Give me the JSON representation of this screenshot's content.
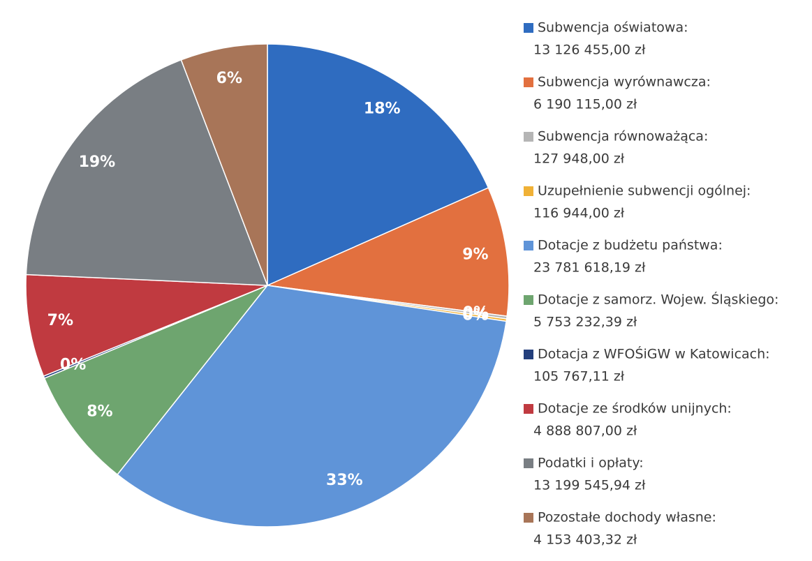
{
  "chart_data": {
    "type": "pie",
    "categories": [
      "Subwencja oświatowa:",
      "Subwencja wyrównawcza:",
      "Subwencja równoważąca:",
      "Uzupełnienie subwencji ogólnej:",
      "Dotacje z budżetu państwa:",
      "Dotacje z samorz. Wojew. Śląskiego:",
      "Dotacja z WFOŚiGW w Katowicach:",
      "Dotacje ze środków unijnych:",
      "Podatki i opłaty:",
      "Pozostałe dochody własne:"
    ],
    "values": [
      13126455.0,
      6190115.0,
      127948.0,
      116944.0,
      23781618.19,
      5753232.39,
      105767.11,
      4888807.0,
      13199545.94,
      4153403.32
    ],
    "value_labels": [
      "13 126 455,00 zł",
      "6 190 115,00 zł",
      "127 948,00 zł",
      "116 944,00 zł",
      "23 781 618,19 zł",
      "5 753 232,39 zł",
      "105 767,11 zł",
      "4 888 807,00 zł",
      "13 199 545,94 zł",
      "4 153 403,32 zł"
    ],
    "percent_labels": [
      "18%",
      "9%",
      "0%",
      "0%",
      "33%",
      "8%",
      "0%",
      "7%",
      "19%",
      "6%"
    ],
    "colors": [
      "#2f6cc0",
      "#e2703f",
      "#b5b5b5",
      "#f0b136",
      "#5f94d8",
      "#6ea56f",
      "#233f7c",
      "#c03a40",
      "#797e83",
      "#a87558"
    ]
  }
}
